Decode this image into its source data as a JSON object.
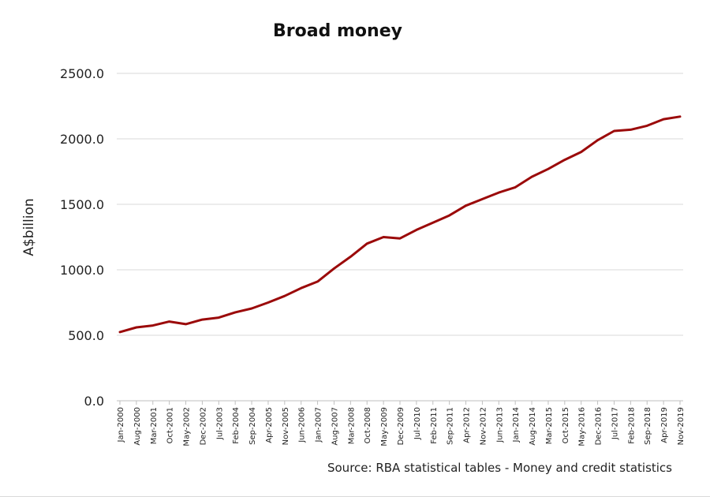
{
  "chart_data": {
    "type": "line",
    "title": "Broad money",
    "ylabel": "A$billion",
    "xlabel": "",
    "ylim": [
      0,
      2500
    ],
    "yticks": [
      "0.0",
      "500.0",
      "1000.0",
      "1500.0",
      "2000.0",
      "2500.0"
    ],
    "grid": true,
    "legend": "none",
    "line_color": "#9b0a0a",
    "categories": [
      "Jan-2000",
      "Aug-2000",
      "Mar-2001",
      "Oct-2001",
      "May-2002",
      "Dec-2002",
      "Jul-2003",
      "Feb-2004",
      "Sep-2004",
      "Apr-2005",
      "Nov-2005",
      "Jun-2006",
      "Jan-2007",
      "Aug-2007",
      "Mar-2008",
      "Oct-2008",
      "May-2009",
      "Dec-2009",
      "Jul-2010",
      "Feb-2011",
      "Sep-2011",
      "Apr-2012",
      "Nov-2012",
      "Jun-2013",
      "Jan-2014",
      "Aug-2014",
      "Mar-2015",
      "Oct-2015",
      "May-2016",
      "Dec-2016",
      "Jul-2017",
      "Feb-2018",
      "Sep-2018",
      "Apr-2019",
      "Nov-2019"
    ],
    "series": [
      {
        "values": [
          525,
          560,
          575,
          605,
          585,
          620,
          635,
          675,
          705,
          750,
          800,
          860,
          910,
          1010,
          1100,
          1200,
          1250,
          1240,
          1305,
          1360,
          1415,
          1490,
          1540,
          1590,
          1630,
          1710,
          1770,
          1840,
          1900,
          1990,
          2060,
          2070,
          2100,
          2150,
          2170
        ]
      }
    ]
  },
  "source": "Source: RBA statistical tables - Money and credit statistics"
}
